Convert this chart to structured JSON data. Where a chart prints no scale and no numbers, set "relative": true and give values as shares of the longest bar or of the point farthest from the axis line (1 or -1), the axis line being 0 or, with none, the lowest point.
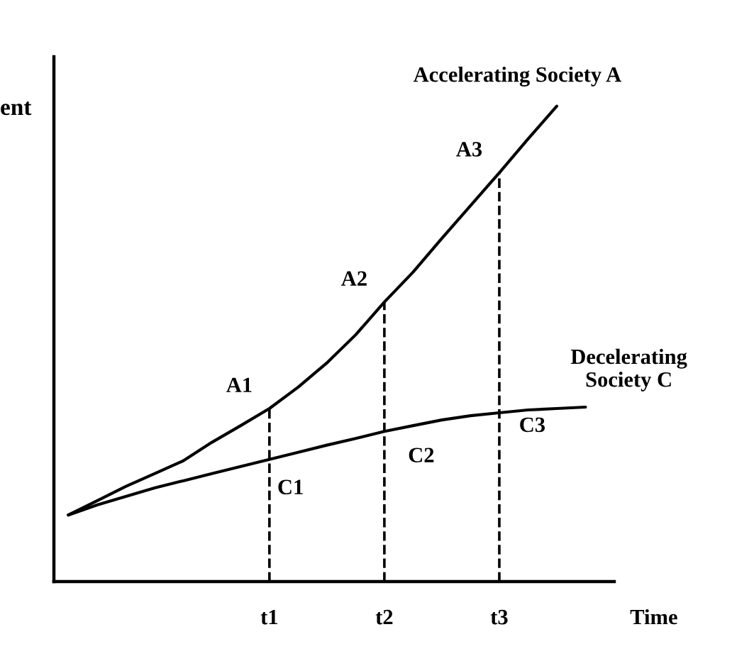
{
  "chart_data": {
    "type": "line",
    "relative": true,
    "xlabel": "Time",
    "ylabel": "ent",
    "categories": [
      null,
      null,
      null,
      null,
      null,
      null,
      null,
      "t1",
      null,
      null,
      null,
      "t2",
      null,
      null,
      null,
      "t3",
      null,
      null,
      null
    ],
    "series": [
      {
        "name": "Accelerating Society A",
        "color": "#000000",
        "values": [
          0.14,
          0.17,
          0.2,
          0.227,
          0.254,
          0.293,
          0.328,
          0.364,
          0.409,
          0.46,
          0.519,
          0.588,
          0.651,
          0.722,
          0.791,
          0.86,
          0.931,
          1,
          null
        ]
      },
      {
        "name": "Decelerating\nSociety C",
        "color": "#000000",
        "values": [
          0.14,
          0.161,
          0.179,
          0.197,
          0.212,
          0.227,
          0.242,
          0.257,
          0.272,
          0.287,
          0.301,
          0.316,
          0.328,
          0.34,
          0.349,
          0.355,
          0.361,
          0.364,
          0.367
        ]
      }
    ],
    "ref_lines": [
      {
        "axis": "x",
        "value": "t1",
        "line_style": "dashed",
        "color": "#000000"
      },
      {
        "axis": "x",
        "value": "t2",
        "line_style": "dashed",
        "color": "#000000"
      },
      {
        "axis": "x",
        "value": "t3",
        "line_style": "dashed",
        "color": "#000000"
      }
    ],
    "annotations": [
      {
        "text": "A1",
        "x": "t1",
        "y": 0.364
      },
      {
        "text": "A2",
        "x": "t2",
        "y": 0.588
      },
      {
        "text": "A3",
        "x": "t3",
        "y": 0.86
      },
      {
        "text": "C1",
        "x": "t1",
        "y": 0.257
      },
      {
        "text": "C2",
        "x": "t2",
        "y": 0.316
      },
      {
        "text": "C3",
        "x": "t3",
        "y": 0.355
      }
    ],
    "grid": false,
    "legend": false,
    "marker": "none",
    "line_style": "solid"
  }
}
